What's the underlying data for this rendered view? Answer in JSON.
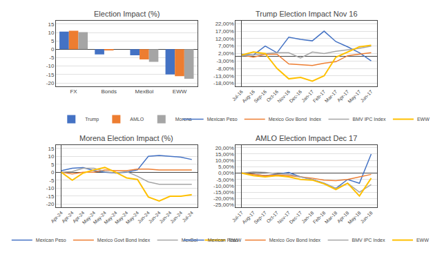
{
  "chart_data": [
    {
      "type": "bar",
      "title": "Election Impact (%)",
      "categories": [
        "FX",
        "Bonds",
        "MexBol",
        "EWW"
      ],
      "series": [
        {
          "name": "Trump",
          "color": "#4472C4",
          "values": [
            10.5,
            -3.0,
            -3.5,
            -15.0
          ]
        },
        {
          "name": "AMLO",
          "color": "#ED7D31",
          "values": [
            11.0,
            -0.3,
            -6.0,
            -16.0
          ]
        },
        {
          "name": "Morena",
          "color": "#A5A5A5",
          "values": [
            10.2,
            0.0,
            -7.5,
            -17.5
          ]
        }
      ],
      "ylim": [
        -22,
        17
      ],
      "yticks": [
        -20,
        -15,
        -10,
        -5,
        0,
        5,
        10,
        15
      ],
      "grid": true,
      "legend": "bottom"
    },
    {
      "type": "line",
      "title": "Trump Election Impact Nov 16",
      "categories": [
        "Jul-16",
        "Aug-16",
        "Sep-16",
        "Oct-16",
        "Nov-16",
        "Dec-16",
        "Jan-17",
        "Feb-17",
        "Mar-17",
        "Apr-17",
        "May-17",
        "Jun-17"
      ],
      "series": [
        {
          "name": "Mexican Peso",
          "color": "#4472C4",
          "values": [
            1.5,
            1.0,
            7.0,
            2.5,
            13.0,
            11.5,
            10.5,
            17.0,
            10.0,
            6.5,
            2.5,
            -3.0
          ]
        },
        {
          "name": "Mexico Gov Bond  Index",
          "color": "#ED7D31",
          "values": [
            1.0,
            -0.5,
            1.5,
            1.5,
            -5.0,
            -5.5,
            -6.0,
            -4.5,
            -3.5,
            0.5,
            1.5,
            2.5
          ]
        },
        {
          "name": "BMV IPC Index",
          "color": "#A5A5A5",
          "values": [
            0.5,
            1.0,
            2.0,
            2.5,
            2.5,
            -1.0,
            3.0,
            2.0,
            3.5,
            4.5,
            5.5,
            7.0
          ]
        },
        {
          "name": "EWW",
          "color": "#FFC000",
          "values": [
            1.0,
            3.0,
            2.0,
            -8.0,
            -15.0,
            -14.0,
            -16.5,
            -13.0,
            -0.5,
            3.0,
            6.5,
            7.5
          ]
        }
      ],
      "ylim": [
        -20,
        24
      ],
      "yticks": [
        {
          "value": 22,
          "label": "22,00%"
        },
        {
          "value": 17,
          "label": "17,00%"
        },
        {
          "value": 12,
          "label": "12,00%"
        },
        {
          "value": 7,
          "label": "7,00%"
        },
        {
          "value": 2,
          "label": "2,00%"
        },
        {
          "value": -3,
          "label": "-3,00%"
        },
        {
          "value": -8,
          "label": "-8,00%"
        },
        {
          "value": -13,
          "label": "-13,00%"
        },
        {
          "value": -18,
          "label": "-18,00%"
        }
      ],
      "grid": true,
      "legend": "bottom"
    },
    {
      "type": "line",
      "title": "Morena Election Impact (%)",
      "categories": [
        "Apr-24",
        "Apr-24",
        "Apr-24",
        "May-24",
        "May-24",
        "May-24",
        "May-24",
        "May-24",
        "Jun-24",
        "Jun-24",
        "Jun-24",
        "Jun-24",
        "Jul-24"
      ],
      "series": [
        {
          "name": "Mexican Peso",
          "color": "#4472C4",
          "values": [
            1.0,
            2.5,
            3.0,
            1.0,
            0.0,
            -0.5,
            0.0,
            1.5,
            10.0,
            10.5,
            10.0,
            9.5,
            8.0
          ]
        },
        {
          "name": "Mexico Govt Bond Index",
          "color": "#ED7D31",
          "values": [
            0.0,
            -1.0,
            0.0,
            0.0,
            1.5,
            1.0,
            1.0,
            2.0,
            2.0,
            1.5,
            1.5,
            1.5,
            1.5
          ]
        },
        {
          "name": "MexBol",
          "color": "#A5A5A5",
          "values": [
            0.0,
            0.5,
            2.5,
            2.5,
            0.5,
            -0.5,
            0.5,
            -2.5,
            -6.0,
            -7.5,
            -7.5,
            -7.5,
            -7.5
          ]
        },
        {
          "name": "EWW",
          "color": "#FFC000",
          "values": [
            0.0,
            -5.0,
            -0.5,
            1.5,
            3.0,
            0.0,
            -3.5,
            -4.5,
            -15.5,
            -18.0,
            -15.0,
            -15.0,
            -14.0
          ]
        }
      ],
      "ylim": [
        -22,
        17
      ],
      "yticks": [
        -20,
        -15,
        -10,
        -5,
        0,
        5,
        10,
        15
      ],
      "grid": true,
      "legend": "bottom"
    },
    {
      "type": "line",
      "title": "AMLO Election Impact Dec 17",
      "categories": [
        "Jul-17",
        "Aug-17",
        "Sep-17",
        "Oct-17",
        "Nov-17",
        "Dec-17",
        "Jan-18",
        "Feb-18",
        "Mar-18",
        "Apr-18",
        "May-18",
        "Jun-18"
      ],
      "series": [
        {
          "name": "Mexican Peso",
          "color": "#4472C4",
          "values": [
            0.0,
            -1.0,
            -2.0,
            -1.0,
            0.5,
            -3.0,
            -5.0,
            -8.0,
            -12.0,
            -5.0,
            -8.0,
            15.0
          ]
        },
        {
          "name": "Mexico Gov Bond Index",
          "color": "#ED7D31",
          "values": [
            0.0,
            -1.0,
            -2.0,
            -1.5,
            -2.0,
            -3.0,
            -4.0,
            -5.5,
            -6.0,
            -5.0,
            -3.0,
            -1.0
          ]
        },
        {
          "name": "BMV IPC Index",
          "color": "#A5A5A5",
          "values": [
            0.0,
            1.0,
            0.5,
            -0.5,
            -1.0,
            -3.0,
            -5.0,
            -8.0,
            -12.0,
            -8.0,
            -15.0,
            -9.0
          ]
        },
        {
          "name": "EWW",
          "color": "#FFC000",
          "values": [
            0.0,
            -2.0,
            -3.0,
            -2.0,
            -3.0,
            -5.0,
            -5.5,
            -8.5,
            -13.0,
            -8.0,
            -18.0,
            -4.0
          ]
        }
      ],
      "ylim": [
        -27,
        22
      ],
      "yticks": [
        {
          "value": 20,
          "label": "20,00%"
        },
        {
          "value": 15,
          "label": "15,00%"
        },
        {
          "value": 10,
          "label": "10,00%"
        },
        {
          "value": 5,
          "label": "5,00%"
        },
        {
          "value": 0,
          "label": "0,00%"
        },
        {
          "value": -5,
          "label": "-5,00%"
        },
        {
          "value": -10,
          "label": "-10,00%"
        },
        {
          "value": -15,
          "label": "-15,00%"
        },
        {
          "value": -20,
          "label": "-20,00%"
        },
        {
          "value": -25,
          "label": "-25,00%"
        }
      ],
      "grid": true,
      "legend": "bottom"
    }
  ]
}
